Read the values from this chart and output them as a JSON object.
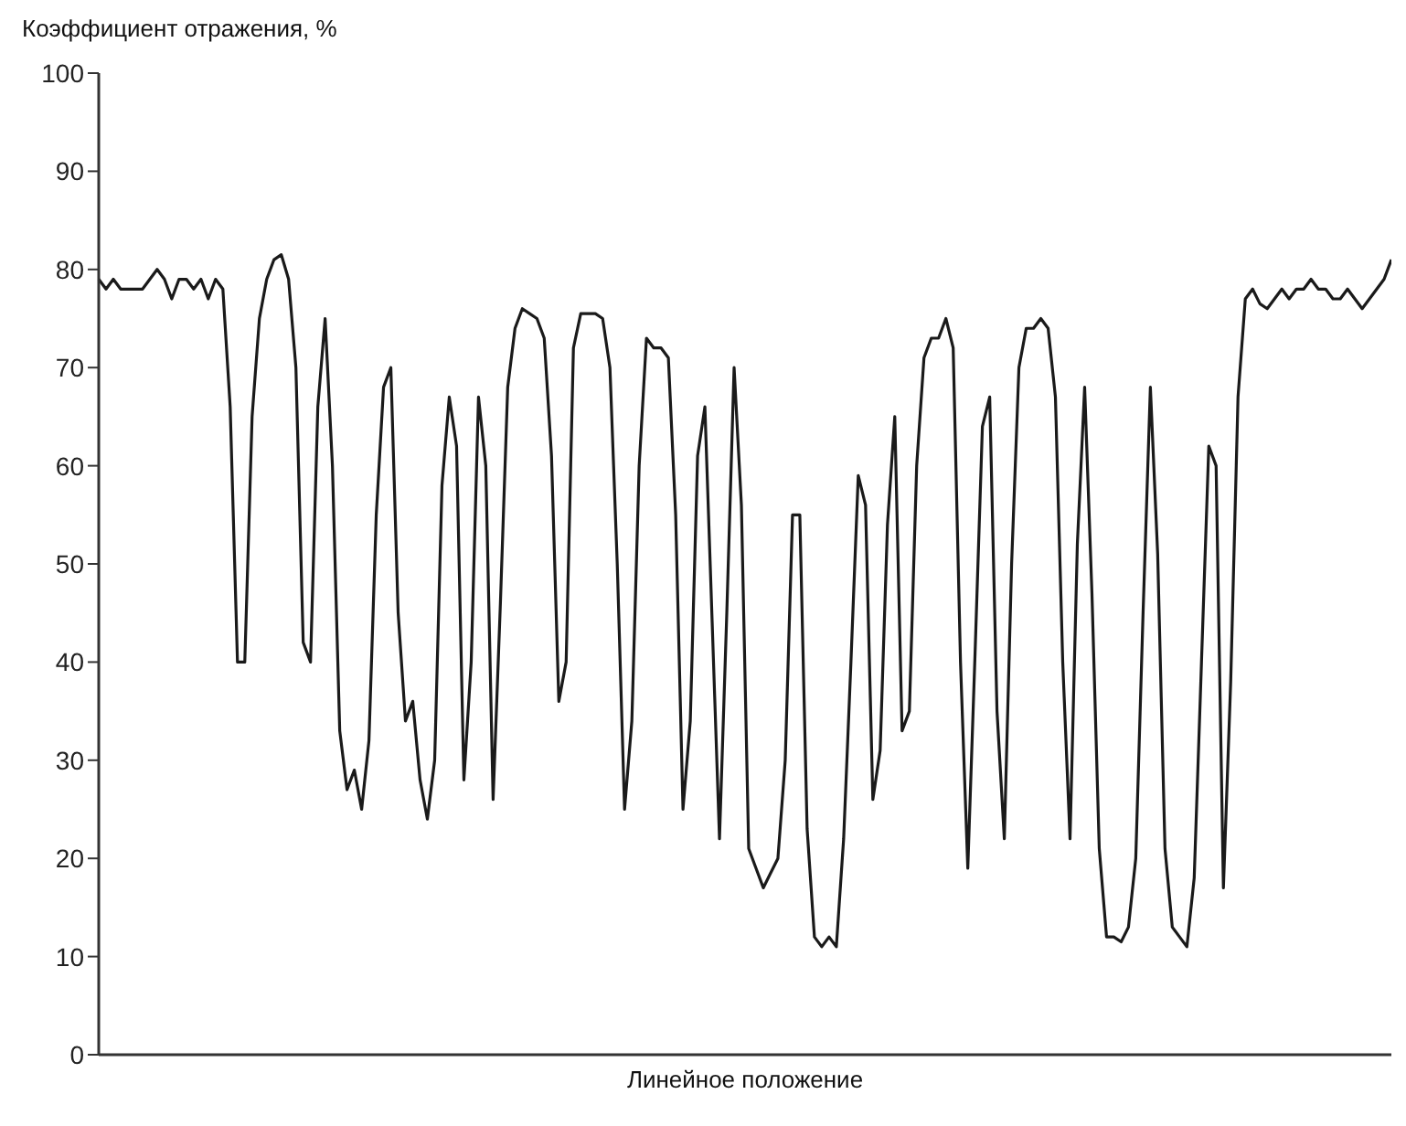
{
  "chart_data": {
    "type": "line",
    "ylabel": "Коэффициент отражения, %",
    "xlabel": "Линейное положение",
    "tick_labels": "y",
    "ylim": [
      0,
      100
    ],
    "yticks": [
      0,
      10,
      20,
      30,
      40,
      50,
      60,
      70,
      80,
      90,
      100
    ],
    "color": "#1a1a1a",
    "categories": [
      null,
      null,
      null,
      null,
      null,
      null,
      null,
      null,
      null,
      null,
      null,
      null,
      null,
      null,
      null,
      null,
      null,
      null,
      null,
      null,
      null,
      null,
      null,
      null,
      null,
      null,
      null,
      null,
      null,
      null,
      null,
      null,
      null,
      null,
      null,
      null,
      null,
      null,
      null,
      null,
      null,
      null,
      null,
      null,
      null,
      null,
      null,
      null,
      null,
      null,
      null,
      null,
      null,
      null,
      null,
      null,
      null,
      null,
      null,
      null,
      null,
      null,
      null,
      null,
      null,
      null,
      null,
      null,
      null,
      null,
      null,
      null,
      null,
      null,
      null,
      null,
      null,
      null,
      null,
      null,
      null,
      null,
      null,
      null,
      null,
      null,
      null,
      null,
      null,
      null,
      null,
      null,
      null,
      null,
      null,
      null,
      null,
      null,
      null,
      null,
      null,
      null,
      null,
      null,
      null,
      null,
      null,
      null,
      null,
      null,
      null,
      null,
      null,
      null,
      null,
      null,
      null,
      null,
      null,
      null,
      null,
      null,
      null,
      null,
      null,
      null,
      null,
      null,
      null,
      null,
      null,
      null,
      null,
      null,
      null,
      null,
      null,
      null,
      null,
      null,
      null,
      null,
      null,
      null,
      null,
      null,
      null,
      null,
      null,
      null,
      null,
      null,
      null,
      null,
      null,
      null,
      null,
      null,
      null,
      null,
      null,
      null,
      null,
      null,
      null,
      null,
      null,
      null,
      null,
      null,
      null,
      null,
      null,
      null,
      null,
      null,
      null,
      null
    ],
    "values": [
      79,
      78,
      79,
      78,
      78,
      78,
      78,
      79,
      80,
      79,
      77,
      79,
      79,
      78,
      79,
      77,
      79,
      78,
      66,
      40,
      40,
      65,
      75,
      79,
      81,
      81.5,
      79,
      70,
      42,
      40,
      66,
      75,
      60,
      33,
      27,
      29,
      25,
      32,
      55,
      68,
      70,
      45,
      34,
      36,
      28,
      24,
      30,
      58,
      67,
      62,
      28,
      40,
      67,
      60,
      26,
      46,
      68,
      74,
      76,
      75.5,
      75,
      73,
      61,
      36,
      40,
      72,
      75.5,
      75.5,
      75.5,
      75,
      70,
      50,
      25,
      34,
      60,
      73,
      72,
      72,
      71,
      55,
      25,
      34,
      61,
      66,
      44,
      22,
      45,
      70,
      56,
      21,
      19,
      17,
      18.5,
      20,
      30,
      55,
      55,
      23,
      12,
      11,
      12,
      11,
      22,
      40,
      59,
      56,
      26,
      31,
      54,
      65,
      33,
      35,
      60,
      71,
      73,
      73,
      75,
      72,
      40,
      19,
      41,
      64,
      67,
      35,
      22,
      50,
      70,
      74,
      74,
      75,
      74,
      67,
      40,
      22,
      52,
      68,
      47,
      21,
      12,
      12,
      11.5,
      13,
      20,
      45,
      68,
      51,
      21,
      13,
      12,
      11,
      18,
      40,
      62,
      60,
      17,
      38,
      67,
      77,
      78,
      76.5,
      76,
      77,
      78,
      77,
      78,
      78,
      79,
      78,
      78,
      77,
      77,
      78,
      77,
      76,
      77,
      78,
      79,
      81
    ]
  }
}
